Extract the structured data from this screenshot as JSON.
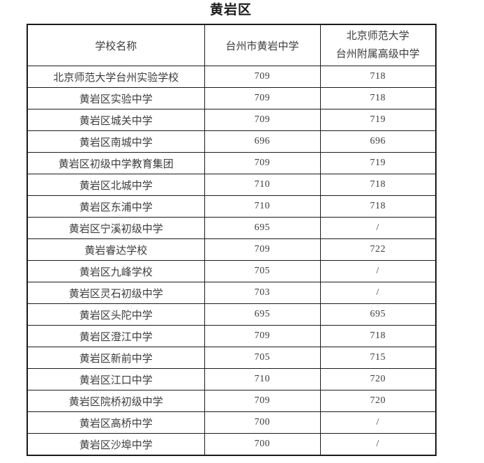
{
  "title": "黄岩区",
  "table": {
    "header": {
      "col1": "学校名称",
      "col2": "台州市黄岩中学",
      "col3_line1": "北京师范大学",
      "col3_line2": "台州附属高级中学"
    },
    "rows": [
      {
        "school": "北京师范大学台州实验学校",
        "huangyan_score": "709",
        "bnu_score": "718"
      },
      {
        "school": "黄岩区实验中学",
        "huangyan_score": "709",
        "bnu_score": "718"
      },
      {
        "school": "黄岩区城关中学",
        "huangyan_score": "709",
        "bnu_score": "719"
      },
      {
        "school": "黄岩区南城中学",
        "huangyan_score": "696",
        "bnu_score": "696"
      },
      {
        "school": "黄岩区初级中学教育集团",
        "huangyan_score": "709",
        "bnu_score": "719"
      },
      {
        "school": "黄岩区北城中学",
        "huangyan_score": "710",
        "bnu_score": "718"
      },
      {
        "school": "黄岩区东浦中学",
        "huangyan_score": "710",
        "bnu_score": "718"
      },
      {
        "school": "黄岩区宁溪初级中学",
        "huangyan_score": "695",
        "bnu_score": "/"
      },
      {
        "school": "黄岩睿达学校",
        "huangyan_score": "709",
        "bnu_score": "722"
      },
      {
        "school": "黄岩区九峰学校",
        "huangyan_score": "705",
        "bnu_score": "/"
      },
      {
        "school": "黄岩区灵石初级中学",
        "huangyan_score": "703",
        "bnu_score": "/"
      },
      {
        "school": "黄岩区头陀中学",
        "huangyan_score": "695",
        "bnu_score": "695"
      },
      {
        "school": "黄岩区澄江中学",
        "huangyan_score": "709",
        "bnu_score": "718"
      },
      {
        "school": "黄岩区新前中学",
        "huangyan_score": "705",
        "bnu_score": "715"
      },
      {
        "school": "黄岩区江口中学",
        "huangyan_score": "710",
        "bnu_score": "720"
      },
      {
        "school": "黄岩区院桥初级中学",
        "huangyan_score": "709",
        "bnu_score": "720"
      },
      {
        "school": "黄岩区高桥中学",
        "huangyan_score": "700",
        "bnu_score": "/"
      },
      {
        "school": "黄岩区沙埠中学",
        "huangyan_score": "700",
        "bnu_score": "/"
      }
    ]
  }
}
